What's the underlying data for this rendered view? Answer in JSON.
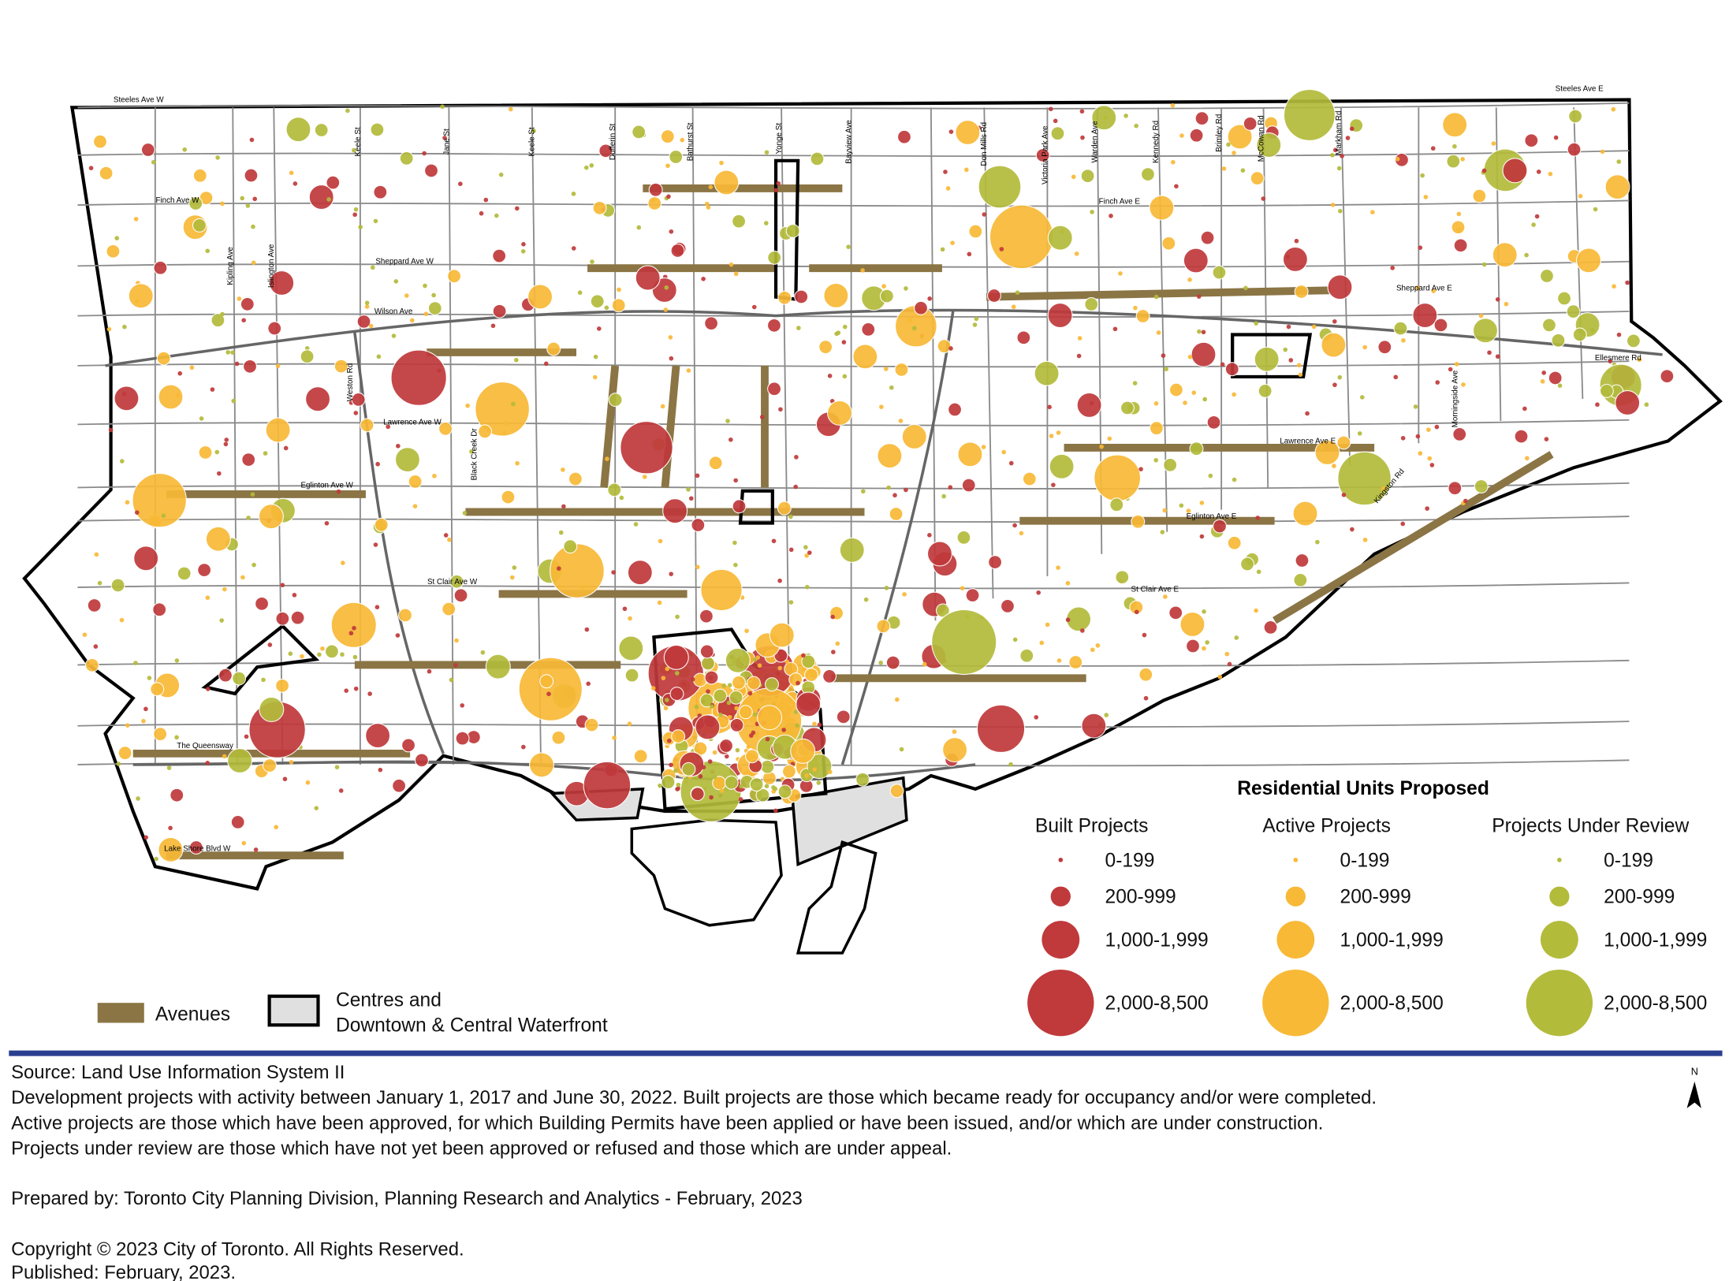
{
  "map": {
    "street_labels": [
      "Steeles Ave W",
      "Steeles Ave E",
      "Finch Ave W",
      "Finch Ave E",
      "Sheppard Ave W",
      "Sheppard Ave E",
      "Wilson Ave",
      "Ellesmere Rd",
      "Lawrence Ave W",
      "Lawrence Ave E",
      "Eglinton Ave W",
      "Eglinton Ave E",
      "St Clair Ave W",
      "St Clair Ave E",
      "The Queensway",
      "Lake Shore Blvd W",
      "Keele St",
      "Jane St",
      "Keele St",
      "Dufferin St",
      "Bathurst St",
      "Yonge St",
      "Bayview Ave",
      "Don Mills Rd",
      "Victoria Park Ave",
      "Warden Ave",
      "Kennedy Rd",
      "Brimley Rd",
      "McCowan Rd",
      "Markham Rd",
      "Kipling Ave",
      "Islington Ave",
      "Weston Rd",
      "Black Creek Dr",
      "Morningside Ave",
      "Kingston Rd"
    ],
    "north_arrow": "N"
  },
  "legend": {
    "title": "Residential Units Proposed",
    "groups": [
      {
        "name": "Built Projects",
        "color": "#c0393b"
      },
      {
        "name": "Active Projects",
        "color": "#f8b936"
      },
      {
        "name": "Projects Under Review",
        "color": "#b3bb3b"
      }
    ],
    "size_classes": [
      "0-199",
      "200-999",
      "1,000-1,999",
      "2,000-8,500"
    ],
    "avenues": "Avenues",
    "centres": [
      "Centres and",
      "Downtown & Central Waterfront"
    ]
  },
  "footer": {
    "source": "Source: Land Use Information System II",
    "notes": [
      "Development projects with activity between January 1, 2017 and June 30, 2022. Built projects are those which became ready for occupancy and/or were completed.",
      "Active projects are those which have been approved, for which Building Permits have been applied or have been issued, and/or which are under construction.",
      "Projects under review are those which have not yet been approved or refused and those which are under appeal."
    ],
    "prepared": "Prepared by: Toronto City Planning Division, Planning Research and Analytics - February, 2023",
    "copyright": "Copyright © 2023 City of Toronto. All Rights Reserved.",
    "published": "Published: February, 2023."
  }
}
